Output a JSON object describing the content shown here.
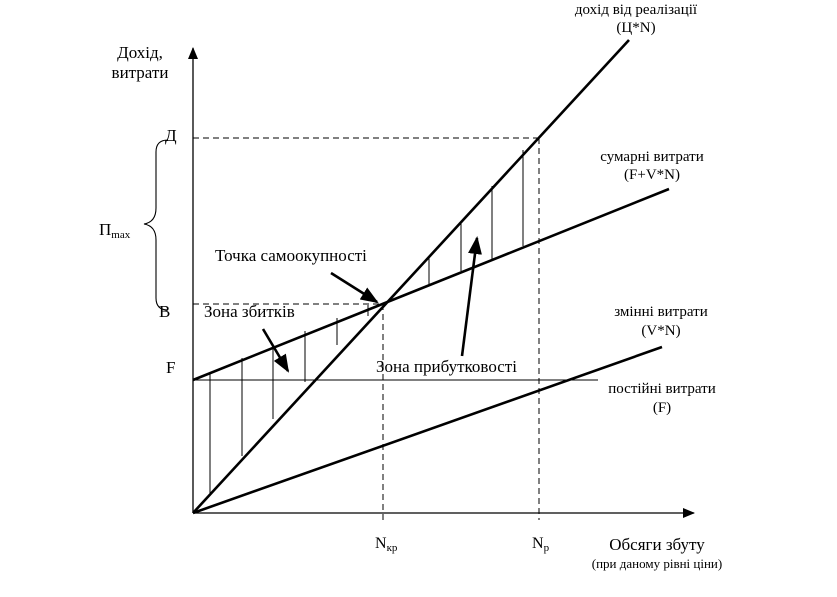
{
  "y_axis": {
    "line1": "Дохід,",
    "line2": "витрати"
  },
  "x_axis": {
    "title": "Обсяги збуту",
    "subtitle": "(при даному рівні ціни)"
  },
  "y_ticks": {
    "d": "Д",
    "b": "B",
    "f": "F"
  },
  "x_ticks": {
    "n_kr": {
      "main": "N",
      "sub": "кр"
    },
    "n_r": {
      "main": "N",
      "sub": "р"
    }
  },
  "p_max": {
    "main": "П",
    "sub": "max"
  },
  "lines": {
    "revenue": {
      "line1": "дохід від реалізації",
      "line2": "(Ц*N)"
    },
    "total": {
      "line1": "сумарні витрати",
      "line2": "(F+V*N)"
    },
    "variable": {
      "line1": "змінні витрати",
      "line2": "(V*N)"
    },
    "fixed": {
      "line1": "постійні витрати",
      "line2": "(F)"
    }
  },
  "annotations": {
    "break_even": "Точка самоокупності",
    "loss_zone": "Зона збитків",
    "profit_zone": "Зона прибутковості"
  }
}
